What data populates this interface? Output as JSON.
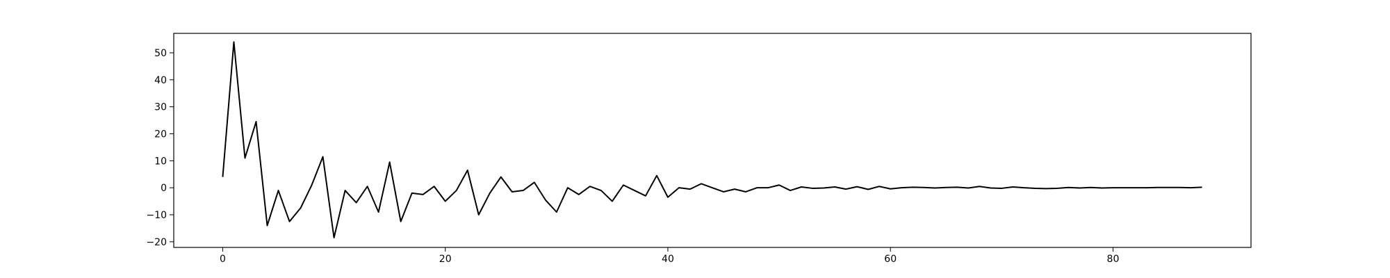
{
  "chart_data": {
    "type": "line",
    "title": "",
    "xlabel": "",
    "ylabel": "",
    "xlim": [
      -4.4,
      92.4
    ],
    "ylim": [
      -22.1,
      57.2
    ],
    "xticks": [
      0,
      20,
      40,
      60,
      80
    ],
    "yticks": [
      -20,
      -10,
      0,
      10,
      20,
      30,
      40,
      50
    ],
    "xtick_labels": [
      "0",
      "20",
      "40",
      "60",
      "80"
    ],
    "ytick_labels": [
      "−20",
      "−10",
      "0",
      "10",
      "20",
      "30",
      "40",
      "50"
    ],
    "grid": false,
    "legend": false,
    "series": [
      {
        "color": "#000000",
        "x": [
          0,
          1,
          2,
          3,
          4,
          5,
          6,
          7,
          8,
          9,
          10,
          11,
          12,
          13,
          14,
          15,
          16,
          17,
          18,
          19,
          20,
          21,
          22,
          23,
          24,
          25,
          26,
          27,
          28,
          29,
          30,
          31,
          32,
          33,
          34,
          35,
          36,
          37,
          38,
          39,
          40,
          41,
          42,
          43,
          44,
          45,
          46,
          47,
          48,
          49,
          50,
          51,
          52,
          53,
          54,
          55,
          56,
          57,
          58,
          59,
          60,
          61,
          62,
          63,
          64,
          65,
          66,
          67,
          68,
          69,
          70,
          71,
          72,
          73,
          74,
          75,
          76,
          77,
          78,
          79,
          80,
          81,
          82,
          83,
          84,
          85,
          86,
          87,
          88
        ],
        "y": [
          4,
          54,
          11,
          24.5,
          -14,
          -1,
          -12.5,
          -7.5,
          1,
          11.5,
          -18.5,
          -1,
          -5.5,
          0.5,
          -9,
          9.5,
          -12.5,
          -2,
          -2.5,
          0.5,
          -5,
          -1,
          6.5,
          -10,
          -2,
          4,
          -1.5,
          -1,
          2,
          -4.5,
          -9,
          0,
          -2.5,
          0.5,
          -1,
          -5,
          1,
          -1,
          -3,
          4.5,
          -3.5,
          0,
          -0.5,
          1.5,
          0,
          -1.5,
          -0.5,
          -1.5,
          0,
          0,
          1,
          -1,
          0.3,
          -0.2,
          -0.1,
          0.3,
          -0.5,
          0.4,
          -0.6,
          0.5,
          -0.4,
          0,
          0.2,
          0.1,
          -0.1,
          0.1,
          0.2,
          -0.1,
          0.5,
          -0.1,
          -0.2,
          0.3,
          0,
          -0.2,
          -0.3,
          -0.2,
          0.1,
          -0.1,
          0.1,
          -0.1,
          0,
          0,
          0,
          0,
          0.1,
          0.1,
          0.1,
          0,
          0.2
        ]
      }
    ]
  }
}
